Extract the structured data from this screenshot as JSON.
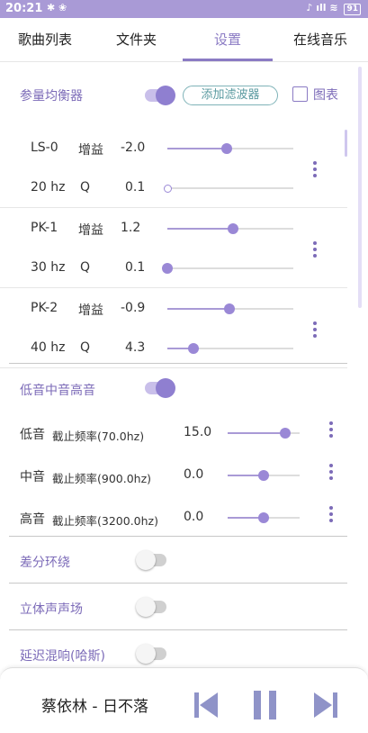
{
  "status_bar": {
    "time": "20:21",
    "left_icons": "✱ ❀",
    "right_icons": "♪ ıll ≋",
    "battery": "91"
  },
  "tabs": [
    "歌曲列表",
    "文件夹",
    "设置",
    "在线音乐"
  ],
  "peq": {
    "title": "参量均衡器",
    "enabled": true,
    "add_filter_label": "添加滤波器",
    "chart_label": "图表",
    "chart_checked": false,
    "filters": [
      {
        "name": "LS-0",
        "gain_label": "增益",
        "gain": "-2.0",
        "gain_level": 0.47,
        "freq": "20 hz",
        "q_label": "Q",
        "q": "0.1",
        "q_level": 0.0
      },
      {
        "name": "PK-1",
        "gain_label": "增益",
        "gain": "1.2",
        "gain_level": 0.52,
        "freq": "30 hz",
        "q_label": "Q",
        "q": "0.1",
        "q_level": 0.0
      },
      {
        "name": "PK-2",
        "gain_label": "增益",
        "gain": "-0.9",
        "gain_level": 0.49,
        "freq": "40 hz",
        "q_label": "Q",
        "q": "4.3",
        "q_level": 0.21
      }
    ]
  },
  "tone": {
    "title": "低音中音高音",
    "enabled": true,
    "bands": [
      {
        "name": "低音",
        "cutoff_label": "截止频率(70.0hz)",
        "value": "15.0",
        "level": 0.8
      },
      {
        "name": "中音",
        "cutoff_label": "截止频率(900.0hz)",
        "value": "0.0",
        "level": 0.5
      },
      {
        "name": "高音",
        "cutoff_label": "截止频率(3200.0hz)",
        "value": "0.0",
        "level": 0.5
      }
    ]
  },
  "toggles": [
    {
      "title": "差分环绕",
      "enabled": false
    },
    {
      "title": "立体声声场",
      "enabled": false
    },
    {
      "title": "延迟混响(哈斯)",
      "enabled": false
    }
  ],
  "player": {
    "song": "蔡依林 - 日不落",
    "prev_icon": "skip-previous-icon",
    "pause_icon": "pause-icon",
    "next_icon": "skip-next-icon"
  },
  "colors": {
    "accent": "#8b7bc4",
    "status_bar": "#a99ad6",
    "add_filter": "#5a9aa0"
  }
}
